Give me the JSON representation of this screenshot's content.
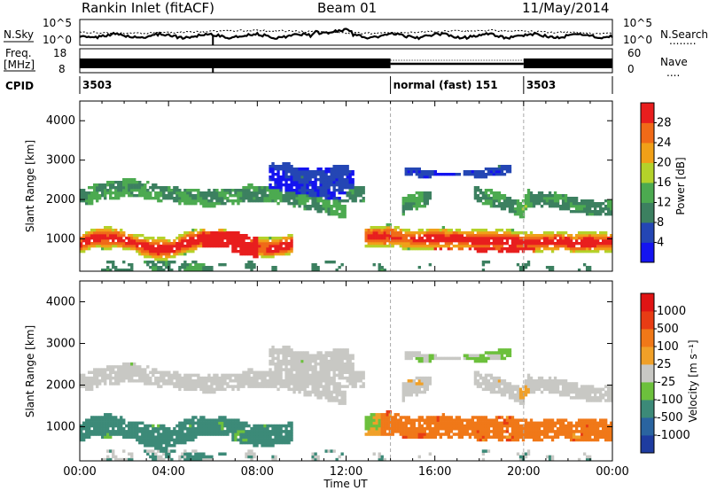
{
  "header": {
    "title": "Rankin Inlet (fitACF)",
    "beam": "Beam 01",
    "date": "11/May/2014"
  },
  "top_panel": {
    "nsky_label": "N.Sky",
    "nsearch_label": "N.Search",
    "nsearch_legend": "........",
    "left_ticks": [
      "10^5",
      "10^0"
    ],
    "right_ticks": [
      "10^5",
      "10^0"
    ],
    "freq_label_line1": "Freq.",
    "freq_label_line2": "[MHz]",
    "freq_ticks": [
      "18",
      "8"
    ],
    "nave_label": "Nave",
    "nave_legend": "....",
    "nave_ticks": [
      "60",
      "0"
    ],
    "cpid_label": "CPID",
    "cpid_segments": [
      {
        "label": "3503",
        "start": 0,
        "end": 14
      },
      {
        "label": "normal (fast) 151",
        "start": 14,
        "end": 20
      },
      {
        "label": "3503",
        "start": 20,
        "end": 24
      }
    ]
  },
  "x_axis": {
    "label": "Time UT",
    "tick_labels": [
      "00:00",
      "04:00",
      "08:00",
      "12:00",
      "16:00",
      "20:00",
      "00:00"
    ],
    "tick_hours": [
      0,
      4,
      8,
      12,
      16,
      20,
      24
    ],
    "mode_change_hours": [
      14,
      20
    ]
  },
  "chart_data": [
    {
      "type": "heatmap",
      "panel": "power",
      "ylabel": "Slant Range [km]",
      "yticks": [
        1000,
        2000,
        3000,
        4000
      ],
      "ylim": [
        180,
        4500
      ],
      "xlim_hours": [
        0,
        24
      ],
      "colorbar": {
        "label": "Power [dB]",
        "ticks": [
          "4",
          "8",
          "12",
          "16",
          "20",
          "24",
          "28"
        ],
        "colors": [
          "#1414f0",
          "#2446b4",
          "#3c8060",
          "#4caa50",
          "#b4d22a",
          "#f0a018",
          "#f06a18",
          "#e81e1e"
        ]
      }
    },
    {
      "type": "heatmap",
      "panel": "velocity",
      "ylabel": "Slant Range [km]",
      "yticks": [
        1000,
        2000,
        3000,
        4000
      ],
      "ylim": [
        180,
        4500
      ],
      "xlim_hours": [
        0,
        24
      ],
      "colorbar": {
        "label": "Velocity [m s⁻¹]",
        "ticks": [
          "1000",
          "500",
          "100",
          "25",
          "-25",
          "-100",
          "-500",
          "-1000"
        ],
        "colors": [
          "#1e3ca0",
          "#2a64a0",
          "#3c8a78",
          "#6cc03c",
          "#c8c8c4",
          "#f0a028",
          "#f07818",
          "#e83c14",
          "#e01414"
        ]
      }
    }
  ]
}
